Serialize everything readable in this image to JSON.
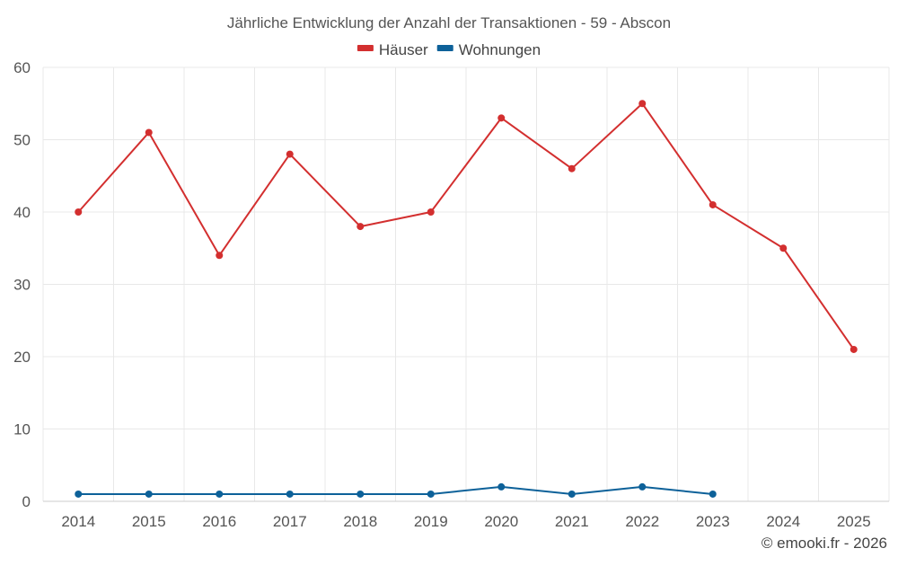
{
  "chart_data": {
    "type": "line",
    "title": "Jährliche Entwicklung der Anzahl der Transaktionen - 59 - Abscon",
    "categories": [
      "2014",
      "2015",
      "2016",
      "2017",
      "2018",
      "2019",
      "2020",
      "2021",
      "2022",
      "2023",
      "2024",
      "2025"
    ],
    "series": [
      {
        "name": "Häuser",
        "color": "#d32f2f",
        "values": [
          40,
          51,
          34,
          48,
          38,
          40,
          53,
          46,
          55,
          41,
          35,
          21
        ]
      },
      {
        "name": "Wohnungen",
        "color": "#0d6199",
        "values": [
          1,
          1,
          1,
          1,
          1,
          1,
          2,
          1,
          2,
          1,
          null,
          null
        ]
      }
    ],
    "ylim": [
      0,
      60
    ],
    "yticks": [
      0,
      10,
      20,
      30,
      40,
      50,
      60
    ],
    "xlabel": "",
    "ylabel": "",
    "grid": true,
    "legend": "top-center"
  },
  "credit": "© emooki.fr - 2026"
}
